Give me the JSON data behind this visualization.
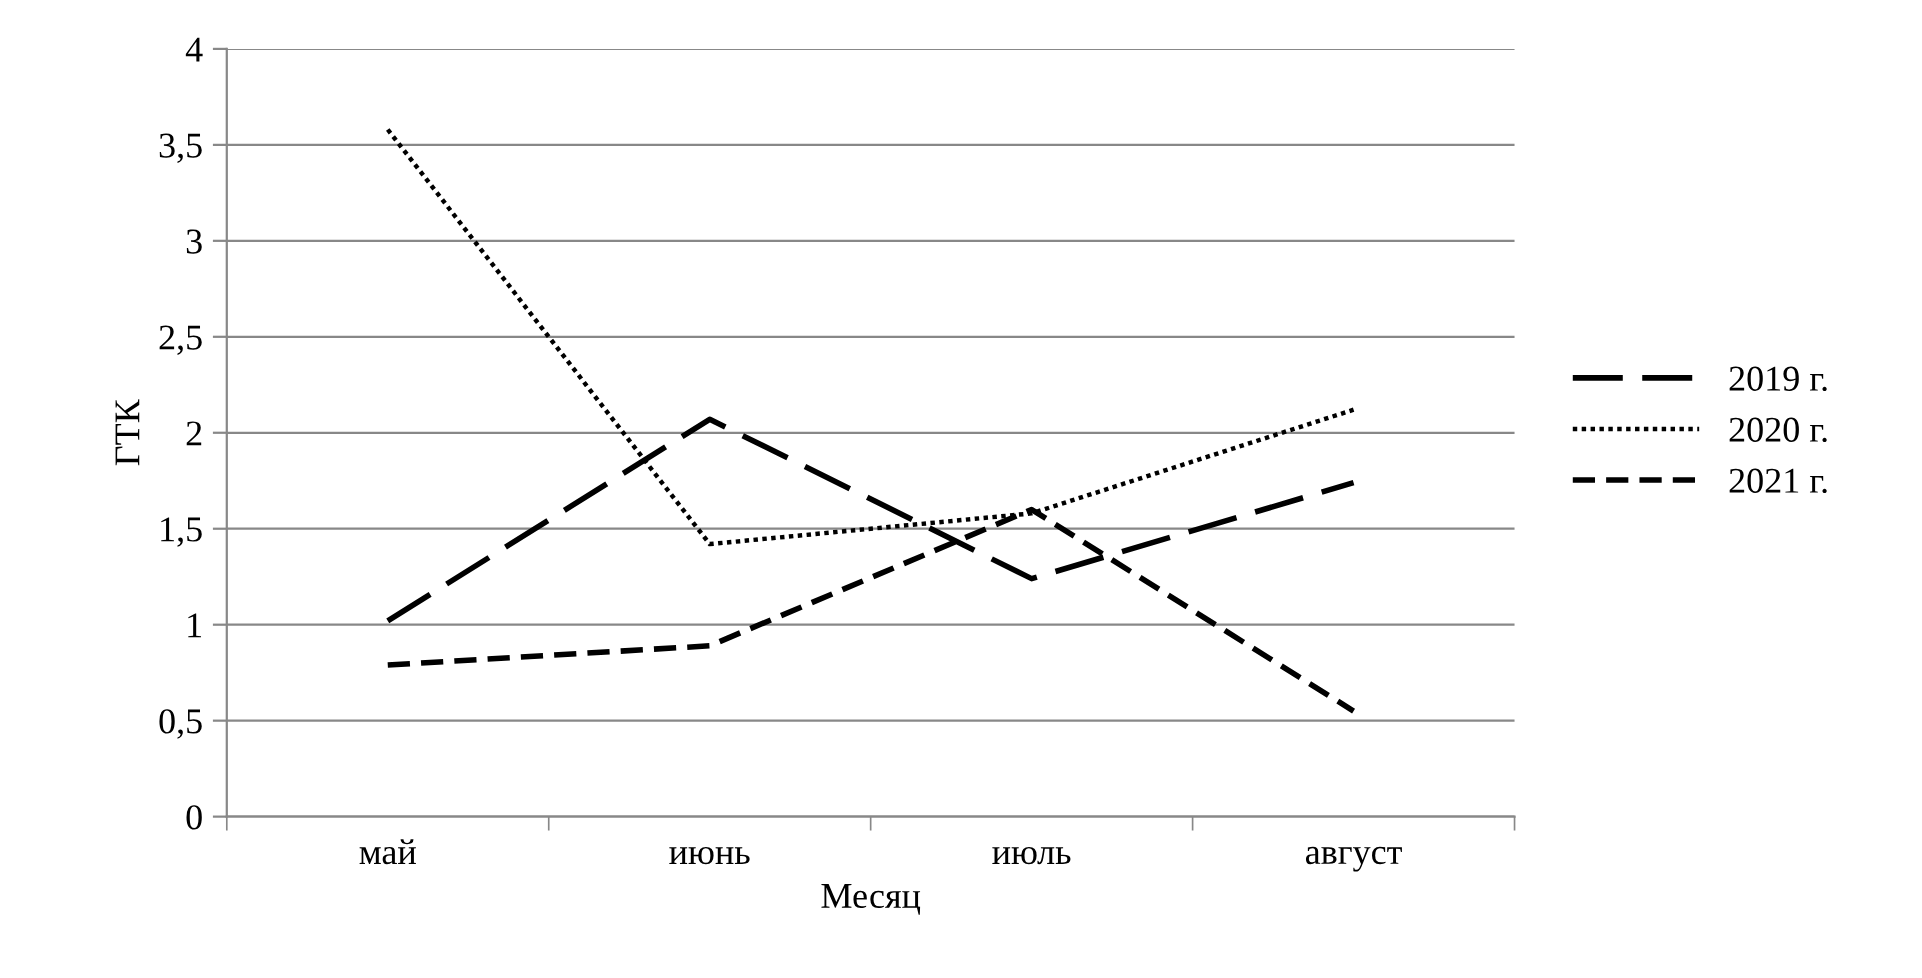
{
  "chart_data": {
    "type": "line",
    "xlabel": "Месяц",
    "ylabel": "ГТК",
    "categories": [
      "май",
      "июнь",
      "июль",
      "август"
    ],
    "series": [
      {
        "name": "2019 г.",
        "color": "#000000",
        "line_style": "dashed",
        "values": [
          1.02,
          2.07,
          1.24,
          1.74
        ]
      },
      {
        "name": "2020 г.",
        "color": "#000000",
        "line_style": "dotted",
        "values": [
          3.58,
          1.42,
          1.58,
          2.12
        ]
      },
      {
        "name": "2021 г.",
        "color": "#000000",
        "line_style": "dashed",
        "values": [
          0.79,
          0.89,
          1.6,
          0.55
        ]
      }
    ],
    "ylim": [
      0,
      4
    ],
    "yticks": [
      0,
      {
        "value": 0.5,
        "label": "0,5"
      },
      1,
      {
        "value": 1.5,
        "label": "1,5"
      },
      2,
      {
        "value": 2.5,
        "label": "2,5"
      },
      3,
      {
        "value": 3.5,
        "label": "3,5"
      },
      4
    ],
    "grid": "y",
    "legend": "right",
    "marker": "none"
  }
}
